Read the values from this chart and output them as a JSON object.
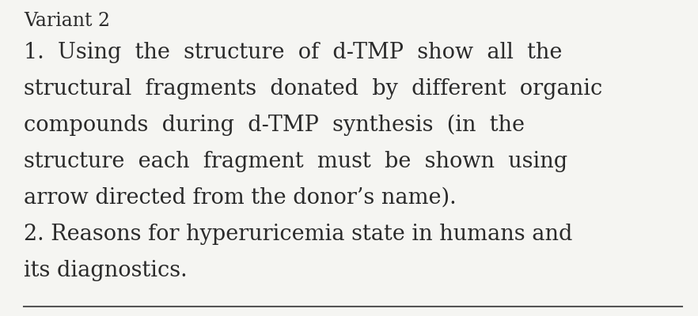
{
  "background_color": "#f5f5f2",
  "text_color": "#2a2a2a",
  "line_color": "#555555",
  "header": "Variant 2",
  "header_fontsize": 17,
  "body_fontsize": 19.5,
  "lines": [
    "1.  Using  the  structure  of  d-TMP  show  all  the",
    "structural  fragments  donated  by  different  organic",
    "compounds  during  d-TMP  synthesis  (in  the",
    "structure  each  fragment  must  be  shown  using",
    "arrow directed from the donor’s name).",
    "2. Reasons for hyperuricemia state in humans and",
    "its diagnostics."
  ],
  "figwidth": 8.82,
  "figheight": 4.0,
  "dpi": 100
}
